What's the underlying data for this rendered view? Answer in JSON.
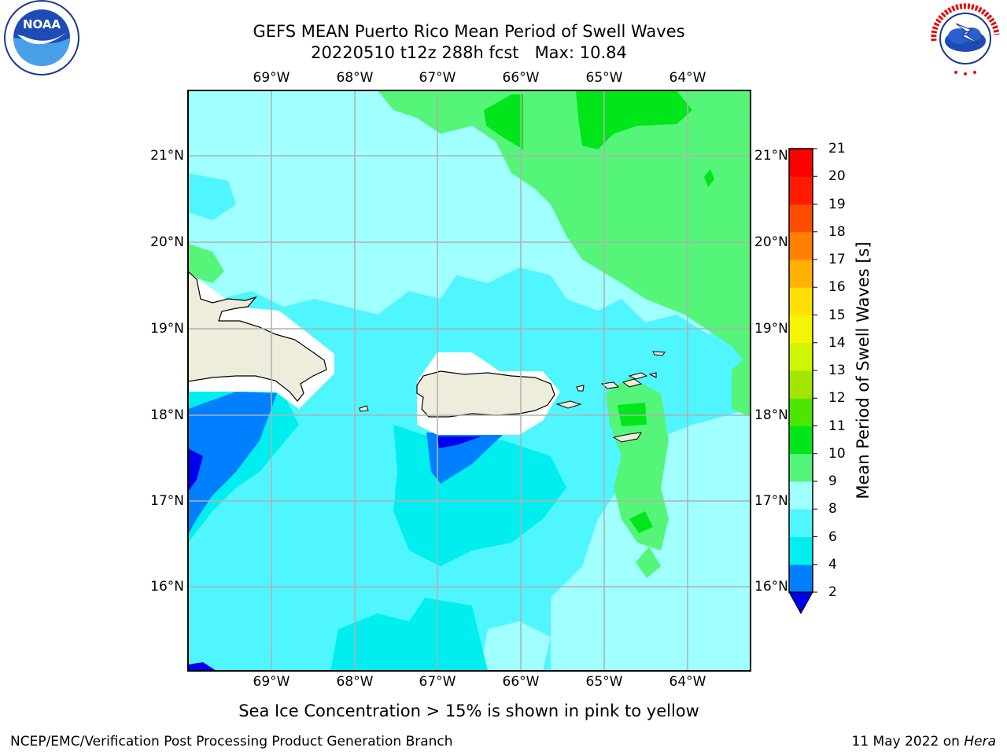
{
  "header": {
    "title_line1": "GEFS MEAN Puerto Rico Mean Period of Swell Waves",
    "title_line2": "20220510 t12z 288h fcst   Max: 10.84"
  },
  "logos": {
    "left": {
      "name": "noaa-logo",
      "text": "NOAA",
      "ring_text": "NATIONAL OCEANIC AND ATMOSPHERIC ADMINISTRATION · U.S. DEPARTMENT OF COMMERCE"
    },
    "right": {
      "name": "nws-logo",
      "ring_text": "NATIONAL WEATHER SERVICE"
    }
  },
  "map": {
    "lon_ticks": [
      "69°W",
      "68°W",
      "67°W",
      "66°W",
      "65°W",
      "64°W"
    ],
    "lat_ticks": [
      "21°N",
      "20°N",
      "19°N",
      "18°N",
      "17°N",
      "16°N"
    ],
    "lon_range": [
      -70.0,
      -63.25
    ],
    "lat_range": [
      15.0,
      21.75
    ],
    "land_color": "#eeecdb",
    "grid_color": "#b0b0b0"
  },
  "colorbar": {
    "title": "Mean Period of Swell Waves [s]",
    "levels": [
      "2",
      "4",
      "6",
      "8",
      "9",
      "10",
      "11",
      "12",
      "13",
      "14",
      "15",
      "16",
      "17",
      "18",
      "19",
      "20",
      "21"
    ],
    "colors": [
      "#0000ee",
      "#0080ff",
      "#00eeee",
      "#4ff5ff",
      "#a0ffff",
      "#55f57a",
      "#00e61a",
      "#4de600",
      "#a0e600",
      "#d0f500",
      "#f5f500",
      "#ffe000",
      "#ffb000",
      "#ff8000",
      "#ff4c00",
      "#ff1a00",
      "#ff0000"
    ]
  },
  "caption": "Sea Ice Concentration > 15% is shown in pink to yellow",
  "footer": {
    "left": "NCEP/EMC/Verification Post Processing Product Generation Branch",
    "right_date": "11 May 2022 on ",
    "right_host": "Hera"
  }
}
